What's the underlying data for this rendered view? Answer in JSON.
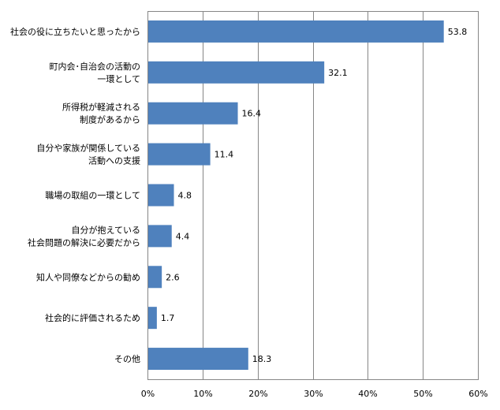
{
  "chart_data": {
    "type": "bar",
    "orientation": "horizontal",
    "categories": [
      [
        "社会の役に立ちたいと思ったから"
      ],
      [
        "町内会･自治会の活動の",
        "一環として"
      ],
      [
        "所得税が軽減される",
        "制度があるから"
      ],
      [
        "自分や家族が関係している",
        "活動への支援"
      ],
      [
        "職場の取組の一環として"
      ],
      [
        "自分が抱えている",
        "社会問題の解決に必要だから"
      ],
      [
        "知人や同僚などからの勧め"
      ],
      [
        "社会的に評価されるため"
      ],
      [
        "その他"
      ]
    ],
    "values": [
      53.8,
      32.1,
      16.4,
      11.4,
      4.8,
      4.4,
      2.6,
      1.7,
      18.3
    ],
    "data_labels": [
      "53.8",
      "32.1",
      "16.4",
      "11.4",
      "4.8",
      "4.4",
      "2.6",
      "1.7",
      "18.3"
    ],
    "xlim": [
      0,
      60
    ],
    "xticks": [
      0,
      10,
      20,
      30,
      40,
      50,
      60
    ],
    "xtick_labels": [
      "0%",
      "10%",
      "20%",
      "30%",
      "40%",
      "50%",
      "60%"
    ],
    "title": "",
    "xlabel": "",
    "ylabel": "",
    "grid": "vertical",
    "legend": "none",
    "colors": {
      "bar": "#4F81BD",
      "grid": "#868686"
    }
  }
}
